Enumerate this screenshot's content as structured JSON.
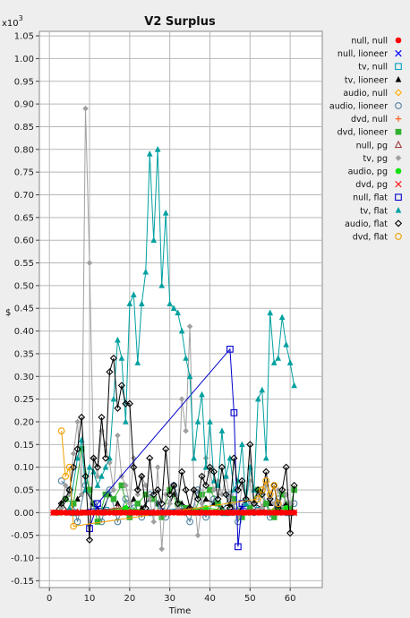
{
  "chart_data": {
    "type": "line",
    "title": "V2 Surplus",
    "xlabel": "Time",
    "ylabel": "$",
    "y_multiplier_label": "x10",
    "y_multiplier_exp": "3",
    "xlim": [
      -2.5,
      68
    ],
    "ylim": [
      -0.165,
      1.06
    ],
    "x_ticks": [
      0,
      10,
      20,
      30,
      40,
      50,
      60
    ],
    "y_ticks": [
      -0.15,
      -0.1,
      -0.05,
      0.0,
      0.05,
      0.1,
      0.15,
      0.2,
      0.25,
      0.3,
      0.35,
      0.4,
      0.45,
      0.5,
      0.55,
      0.6,
      0.65,
      0.7,
      0.75,
      0.8,
      0.85,
      0.9,
      0.95,
      1.0,
      1.05
    ],
    "grid": true,
    "legend_position": "right",
    "series": [
      {
        "name": "null, null",
        "color": "#ff0000",
        "marker": "circle-filled",
        "x": [
          1,
          2,
          3,
          4,
          5,
          6,
          7,
          8,
          9,
          10,
          11,
          12,
          13,
          14,
          15,
          16,
          17,
          18,
          19,
          20,
          21,
          22,
          23,
          24,
          25,
          26,
          27,
          28,
          29,
          30,
          31,
          32,
          33,
          34,
          35,
          36,
          37,
          38,
          39,
          40,
          41,
          42,
          43,
          44,
          45,
          46,
          47,
          48,
          49,
          50,
          51,
          52,
          53,
          54,
          55,
          56,
          57,
          58,
          59,
          60,
          61
        ],
        "y": [
          0,
          0,
          0,
          0,
          0,
          0,
          0,
          0,
          0,
          0,
          0,
          0,
          0,
          0,
          0,
          0,
          0,
          0,
          0,
          0,
          0,
          0,
          0,
          0,
          0,
          0,
          0,
          0,
          0,
          0,
          0,
          0,
          0,
          0,
          0,
          0,
          0,
          0,
          0,
          0,
          0,
          0,
          0,
          0,
          0,
          0,
          0,
          0,
          0,
          0,
          0,
          0,
          0,
          0,
          0,
          0,
          0,
          0,
          0,
          0,
          0
        ]
      },
      {
        "name": "null, lioneer",
        "color": "#0000ff",
        "marker": "x",
        "x": [
          5,
          12,
          20,
          28,
          38,
          48,
          55
        ],
        "y": [
          0,
          0.01,
          0,
          0.005,
          0,
          0.01,
          0
        ]
      },
      {
        "name": "tv, null",
        "color": "#00a0c0",
        "marker": "square-open",
        "x": [
          6,
          14,
          25,
          33,
          44,
          52,
          60
        ],
        "y": [
          0,
          0.005,
          0,
          0.01,
          0,
          0.005,
          0
        ]
      },
      {
        "name": "tv, lioneer",
        "color": "#000000",
        "marker": "triangle-filled",
        "x": [
          1,
          3,
          5,
          7,
          9,
          11,
          13,
          15,
          17,
          19,
          21,
          23,
          25,
          27,
          29,
          31,
          33,
          35,
          37,
          39,
          41,
          43,
          45,
          47,
          49,
          51,
          53,
          55,
          57,
          59,
          61
        ],
        "y": [
          0,
          0.02,
          0,
          0.03,
          0.05,
          0.02,
          0,
          0.04,
          0.02,
          0,
          0.03,
          0.01,
          0.03,
          0.02,
          0,
          0.04,
          0.02,
          0.01,
          0,
          0.03,
          0.02,
          0.01,
          0.02,
          0,
          0.03,
          0.02,
          0.01,
          0.02,
          0.01,
          0.02,
          0
        ]
      },
      {
        "name": "audio, null",
        "color": "#ffaa00",
        "marker": "diamond-open",
        "x": [
          8,
          18,
          27,
          36,
          46,
          56
        ],
        "y": [
          0,
          0.005,
          0,
          0.005,
          0,
          0.005
        ]
      },
      {
        "name": "audio, lioneer",
        "color": "#5080a0",
        "marker": "circle-open",
        "x": [
          3,
          5,
          7,
          9,
          11,
          13,
          15,
          17,
          19,
          21,
          23,
          25,
          27,
          29,
          31,
          33,
          35,
          37,
          39,
          41,
          43,
          45,
          47,
          49,
          51,
          53,
          55,
          57,
          59,
          61
        ],
        "y": [
          0.07,
          0.05,
          -0.02,
          0.06,
          0.02,
          -0.02,
          0.05,
          -0.02,
          0.03,
          0.01,
          -0.01,
          0.04,
          0.02,
          -0.01,
          0.06,
          0.01,
          -0.02,
          0.05,
          -0.01,
          0.03,
          0,
          0.04,
          -0.02,
          0.02,
          0,
          0.05,
          -0.01,
          0.03,
          0,
          0.02
        ]
      },
      {
        "name": "dvd, null",
        "color": "#ff6020",
        "marker": "plus",
        "x": [
          4,
          16,
          30,
          42,
          54
        ],
        "y": [
          0,
          0.005,
          0,
          0.005,
          0
        ]
      },
      {
        "name": "dvd, lioneer",
        "color": "#30b030",
        "marker": "square-filled",
        "x": [
          2,
          4,
          6,
          8,
          10,
          12,
          14,
          16,
          18,
          20,
          22,
          24,
          26,
          28,
          30,
          32,
          34,
          36,
          38,
          40,
          42,
          44,
          46,
          48,
          50,
          52,
          54,
          56,
          58,
          60,
          61
        ],
        "y": [
          0,
          0.03,
          0.02,
          0.14,
          0.05,
          -0.02,
          0.04,
          0.03,
          0.06,
          -0.01,
          0.02,
          0.04,
          0.03,
          -0.01,
          0.05,
          0.02,
          0.01,
          0,
          0.04,
          0.05,
          0.02,
          0,
          0.03,
          -0.01,
          0.01,
          0.05,
          0.02,
          -0.01,
          0.04,
          0.01,
          0.05
        ]
      },
      {
        "name": "null, pg",
        "color": "#a04040",
        "marker": "triangle-open",
        "x": [
          7,
          17,
          26,
          35,
          45,
          53
        ],
        "y": [
          0,
          0.01,
          0,
          0.01,
          0,
          0.01
        ]
      },
      {
        "name": "tv, pg",
        "color": "#a0a0a0",
        "marker": "diamond-filled",
        "x": [
          3,
          4,
          5,
          6,
          7,
          8,
          9,
          10,
          11,
          12,
          13,
          14,
          15,
          16,
          17,
          18,
          19,
          20,
          21,
          22,
          23,
          24,
          25,
          26,
          27,
          28,
          29,
          30,
          31,
          32,
          33,
          34,
          35,
          36,
          37,
          38,
          39,
          40,
          41,
          42,
          43,
          44,
          45,
          46,
          47,
          48,
          49,
          50,
          51,
          52,
          53,
          54,
          55,
          56,
          57,
          58,
          59,
          60
        ],
        "y": [
          0.01,
          0.06,
          0.04,
          0.13,
          0.2,
          0.04,
          0.89,
          0.55,
          0.12,
          0.08,
          0.18,
          0.15,
          0.11,
          0.05,
          0.17,
          0.08,
          0.06,
          0.02,
          0.12,
          0.04,
          0.08,
          0.06,
          0.03,
          -0.02,
          0.1,
          -0.08,
          0.04,
          0.02,
          0.06,
          0.01,
          0.25,
          0.18,
          0.41,
          0.05,
          -0.05,
          0.02,
          0.12,
          0.09,
          0.05,
          0.07,
          0.04,
          0.08,
          0.03,
          0.02,
          -0.01,
          0.06,
          0.03,
          0.07,
          0.02,
          0.04,
          0.01,
          0.06,
          0.03,
          0.02,
          0.05,
          0.01,
          0.04,
          0.02
        ]
      },
      {
        "name": "audio, pg",
        "color": "#10e010",
        "marker": "circle-filled",
        "x": [
          9,
          19,
          29,
          39,
          49,
          59
        ],
        "y": [
          0,
          0.01,
          0,
          0.01,
          0,
          0.01
        ]
      },
      {
        "name": "dvd, pg",
        "color": "#ff2020",
        "marker": "x",
        "x": [
          1,
          5,
          9,
          13,
          17,
          21,
          25,
          29,
          33,
          37,
          41,
          45,
          49,
          53,
          57,
          61
        ],
        "y": [
          0,
          0,
          0,
          0,
          0,
          0,
          0,
          0,
          0,
          0,
          0,
          0,
          0,
          0,
          0,
          0
        ]
      },
      {
        "name": "null, flat",
        "color": "#0000cc",
        "marker": "square-open",
        "x": [
          10,
          12,
          45,
          46,
          47,
          48
        ],
        "y": [
          -0.035,
          0.02,
          0.36,
          0.22,
          -0.075,
          0.02
        ]
      },
      {
        "name": "tv, flat",
        "color": "#00a0a0",
        "marker": "triangle-filled",
        "x": [
          5,
          7,
          8,
          9,
          10,
          11,
          12,
          13,
          14,
          15,
          16,
          17,
          18,
          19,
          20,
          21,
          22,
          23,
          24,
          25,
          26,
          27,
          28,
          29,
          30,
          31,
          32,
          33,
          34,
          35,
          36,
          37,
          38,
          39,
          40,
          41,
          42,
          43,
          44,
          45,
          46,
          47,
          48,
          49,
          50,
          51,
          52,
          53,
          54,
          55,
          56,
          57,
          58,
          59,
          60,
          61
        ],
        "y": [
          0.01,
          0.12,
          0.16,
          0.05,
          0.1,
          0.09,
          0.06,
          0.08,
          0.1,
          0.12,
          0.25,
          0.38,
          0.34,
          0.2,
          0.46,
          0.48,
          0.33,
          0.46,
          0.53,
          0.79,
          0.6,
          0.8,
          0.5,
          0.66,
          0.46,
          0.45,
          0.44,
          0.4,
          0.34,
          0.3,
          0.12,
          0.2,
          0.26,
          0.1,
          0.2,
          0.07,
          0.06,
          0.18,
          0.08,
          0.12,
          0.05,
          0.07,
          0.15,
          0.02,
          0.1,
          0.05,
          0.25,
          0.27,
          0.12,
          0.44,
          0.33,
          0.34,
          0.43,
          0.37,
          0.33,
          0.28
        ]
      },
      {
        "name": "audio, flat",
        "color": "#000000",
        "marker": "diamond-open",
        "x": [
          3,
          4,
          5,
          6,
          7,
          8,
          9,
          10,
          11,
          12,
          13,
          14,
          15,
          16,
          17,
          18,
          19,
          20,
          21,
          22,
          23,
          24,
          25,
          26,
          27,
          28,
          29,
          30,
          31,
          32,
          33,
          34,
          35,
          36,
          37,
          38,
          39,
          40,
          41,
          42,
          43,
          44,
          45,
          46,
          47,
          48,
          49,
          50,
          51,
          52,
          53,
          54,
          55,
          56,
          57,
          58,
          59,
          60,
          61
        ],
        "y": [
          0.02,
          0.03,
          0.05,
          0.1,
          0.14,
          0.21,
          0.08,
          -0.06,
          0.12,
          0.1,
          0.21,
          0.12,
          0.31,
          0.34,
          0.23,
          0.28,
          0.24,
          0.24,
          0.1,
          0.05,
          0.08,
          0.01,
          0.12,
          0.04,
          0.05,
          0.02,
          0.14,
          0.04,
          0.06,
          0.02,
          0.09,
          0.05,
          0.01,
          0.05,
          0.03,
          0.08,
          0.06,
          0.1,
          0.09,
          0.03,
          0.1,
          0.04,
          0.01,
          0.12,
          0.05,
          0.07,
          0.03,
          0.15,
          0.02,
          0.05,
          0.04,
          0.09,
          0.03,
          0.06,
          0.01,
          0.05,
          0.1,
          -0.045,
          0.06
        ]
      },
      {
        "name": "dvd, flat",
        "color": "#f0a000",
        "marker": "circle-open",
        "x": [
          3,
          4,
          5,
          6,
          52,
          53,
          54,
          55,
          56,
          57
        ],
        "y": [
          0.18,
          0.08,
          0.1,
          -0.03,
          0.03,
          0.05,
          0.07,
          0.04,
          0.06,
          0.02
        ]
      }
    ]
  }
}
